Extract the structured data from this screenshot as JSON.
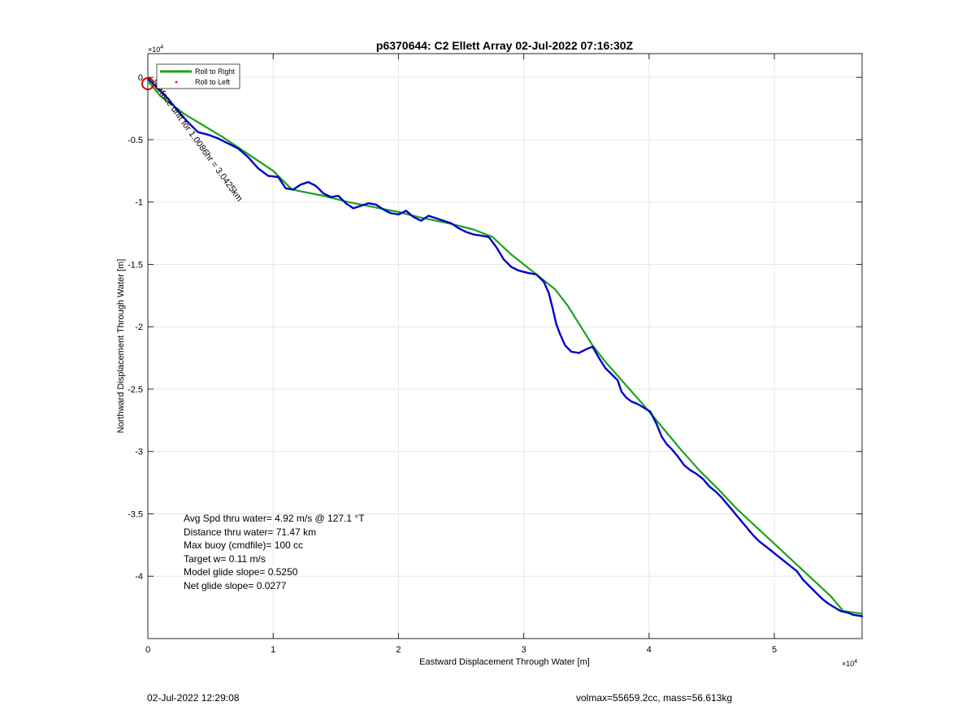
{
  "chart_data": {
    "type": "line",
    "title": "p6370644: C2 Ellett Array 02-Jul-2022 07:16:30Z",
    "xlabel": "Eastward Displacement Through Water [m]",
    "ylabel": "Northward Displacement Through Water [m]",
    "x_exponent_label": "×10",
    "x_exponent": "4",
    "y_exponent_label": "×10",
    "y_exponent": "4",
    "xlim": [
      0,
      57000
    ],
    "ylim": [
      -45000,
      1900
    ],
    "xticks": [
      0,
      10000,
      20000,
      30000,
      40000,
      50000
    ],
    "xtick_labels": [
      "0",
      "1",
      "2",
      "3",
      "4",
      "5"
    ],
    "yticks": [
      0,
      -5000,
      -10000,
      -15000,
      -20000,
      -25000,
      -30000,
      -35000,
      -40000
    ],
    "ytick_labels": [
      "0",
      "-0.5",
      "-1",
      "-1.5",
      "-2",
      "-2.5",
      "-3",
      "-3.5",
      "-4"
    ],
    "grid": true,
    "legend_location": "top-left",
    "series": [
      {
        "name": "Roll to Right",
        "color": "#1ba21b",
        "x": [
          0,
          1000,
          3000,
          6000,
          10000,
          11500,
          14000,
          16000,
          18000,
          20000,
          22000,
          24000,
          26000,
          27500,
          29000,
          31000,
          32500,
          33500,
          35500,
          36500,
          38000,
          39500,
          41000,
          42500,
          44000,
          45500,
          47000,
          48500,
          50000,
          51500,
          53000,
          54500,
          55500,
          57000
        ],
        "y": [
          -300,
          -1500,
          -3000,
          -4800,
          -7500,
          -9000,
          -9500,
          -10000,
          -10400,
          -10800,
          -11300,
          -11700,
          -12200,
          -12800,
          -14200,
          -15800,
          -17000,
          -18300,
          -21500,
          -22800,
          -24500,
          -26200,
          -28000,
          -29800,
          -31500,
          -33000,
          -34600,
          -36000,
          -37400,
          -38800,
          -40200,
          -41600,
          -42800,
          -43000
        ]
      },
      {
        "name": "Roll to Left",
        "color": "#ff0000",
        "x": [],
        "y": []
      },
      {
        "name": "",
        "color": "#0000cc",
        "x": [
          0,
          800,
          1600,
          2400,
          3200,
          4000,
          4800,
          5600,
          6400,
          7200,
          8000,
          8800,
          9600,
          10400,
          11000,
          11600,
          12200,
          12800,
          13400,
          14000,
          14600,
          15200,
          15800,
          16400,
          17000,
          17600,
          18200,
          18800,
          19400,
          20000,
          20600,
          21200,
          21800,
          22400,
          23000,
          23600,
          24200,
          24800,
          25400,
          26000,
          26600,
          27200,
          27800,
          28400,
          29000,
          29600,
          30400,
          31000,
          31600,
          32000,
          32300,
          32600,
          32900,
          33300,
          33800,
          34400,
          35000,
          35500,
          36000,
          36500,
          37000,
          37500,
          37800,
          38200,
          38600,
          39100,
          39600,
          40100,
          40600,
          41000,
          41400,
          41800,
          42300,
          42800,
          43300,
          43800,
          44300,
          44800,
          45300,
          45800,
          46300,
          46800,
          47300,
          47800,
          48300,
          48800,
          49300,
          49800,
          50300,
          50800,
          51300,
          51800,
          52300,
          52800,
          53300,
          53800,
          54300,
          54800,
          55300,
          55800,
          56300,
          57000
        ],
        "y": [
          -100,
          -900,
          -1700,
          -2700,
          -3600,
          -4400,
          -4600,
          -4900,
          -5300,
          -5700,
          -6400,
          -7300,
          -7900,
          -8000,
          -8900,
          -9000,
          -8600,
          -8400,
          -8700,
          -9300,
          -9600,
          -9500,
          -10100,
          -10500,
          -10300,
          -10100,
          -10200,
          -10600,
          -10900,
          -11000,
          -10700,
          -11200,
          -11500,
          -11100,
          -11300,
          -11500,
          -11700,
          -12100,
          -12400,
          -12600,
          -12700,
          -12800,
          -13600,
          -14600,
          -15200,
          -15500,
          -15700,
          -15800,
          -16400,
          -17300,
          -18500,
          -19800,
          -20600,
          -21500,
          -22000,
          -22100,
          -21800,
          -21600,
          -22500,
          -23300,
          -23800,
          -24300,
          -25200,
          -25700,
          -26000,
          -26200,
          -26500,
          -26800,
          -27800,
          -28800,
          -29400,
          -29800,
          -30400,
          -31100,
          -31500,
          -31800,
          -32200,
          -32800,
          -33200,
          -33700,
          -34300,
          -34900,
          -35500,
          -36100,
          -36700,
          -37200,
          -37600,
          -38000,
          -38400,
          -38800,
          -39200,
          -39600,
          -40300,
          -40800,
          -41300,
          -41800,
          -42200,
          -42500,
          -42800,
          -42900,
          -43100,
          -43200
        ]
      }
    ],
    "annotations": [
      {
        "text": "Avg Spd thru water=  4.92 m/s @ 127.1 °T"
      },
      {
        "text": "Distance thru water= 71.47 km"
      },
      {
        "text": "Max buoy (cmdfile)= 100 cc"
      },
      {
        "text": "Target w= 0.11 m/s"
      },
      {
        "text": "Model glide slope= 0.5250"
      },
      {
        "text": "Net glide slope= 0.0277"
      },
      {
        "text": "Surface drift for 1.0086hr = 3.0425km",
        "rotated": true
      }
    ]
  },
  "footer": {
    "timestamp": "02-Jul-2022 12:29:08",
    "vol_mass": "volmax=55659.2cc, mass=56.613kg"
  }
}
